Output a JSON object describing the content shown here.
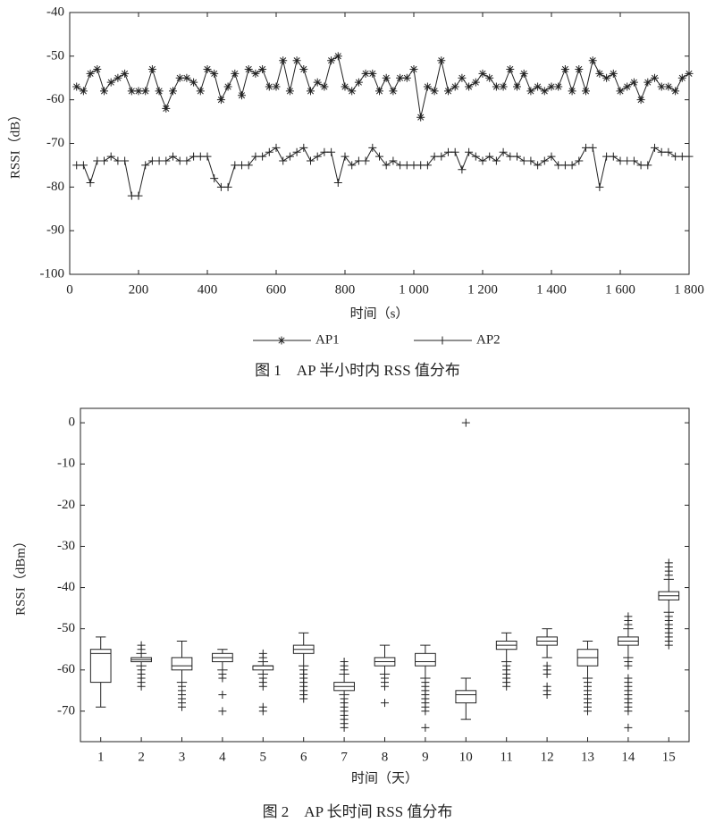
{
  "chart_data": [
    {
      "type": "line",
      "x_label": "时间（s）",
      "y_label": "RSSI（dB）",
      "caption": "图 1　AP 半小时内 RSS 值分布",
      "x": [
        20,
        40,
        60,
        80,
        100,
        120,
        140,
        160,
        180,
        200,
        220,
        240,
        260,
        280,
        300,
        320,
        340,
        360,
        380,
        400,
        420,
        440,
        460,
        480,
        500,
        520,
        540,
        560,
        580,
        600,
        620,
        640,
        660,
        680,
        700,
        720,
        740,
        760,
        780,
        800,
        820,
        840,
        860,
        880,
        900,
        920,
        940,
        960,
        980,
        1000,
        1020,
        1040,
        1060,
        1080,
        1100,
        1120,
        1140,
        1160,
        1180,
        1200,
        1220,
        1240,
        1260,
        1280,
        1300,
        1320,
        1340,
        1360,
        1380,
        1400,
        1420,
        1440,
        1460,
        1480,
        1500,
        1520,
        1540,
        1560,
        1580,
        1600,
        1620,
        1640,
        1660,
        1680,
        1700,
        1720,
        1740,
        1760,
        1780,
        1800
      ],
      "series": [
        {
          "name": "AP1",
          "color": "#222",
          "marker": "star",
          "values": [
            -57,
            -58,
            -54,
            -53,
            -58,
            -56,
            -55,
            -54,
            -58,
            -58,
            -58,
            -53,
            -58,
            -62,
            -58,
            -55,
            -55,
            -56,
            -58,
            -53,
            -54,
            -60,
            -57,
            -54,
            -59,
            -53,
            -54,
            -53,
            -57,
            -57,
            -51,
            -58,
            -51,
            -53,
            -58,
            -56,
            -57,
            -51,
            -50,
            -57,
            -58,
            -56,
            -54,
            -54,
            -58,
            -55,
            -58,
            -55,
            -55,
            -53,
            -64,
            -57,
            -58,
            -51,
            -58,
            -57,
            -55,
            -57,
            -56,
            -54,
            -55,
            -57,
            -57,
            -53,
            -57,
            -54,
            -58,
            -57,
            -58,
            -57,
            -57,
            -53,
            -58,
            -53,
            -58,
            -51,
            -54,
            -55,
            -54,
            -58,
            -57,
            -56,
            -60,
            -56,
            -55,
            -57,
            -57,
            -58,
            -55,
            -54
          ]
        },
        {
          "name": "AP2",
          "color": "#222",
          "marker": "plus",
          "values": [
            -75,
            -75,
            -79,
            -74,
            -74,
            -73,
            -74,
            -74,
            -82,
            -82,
            -75,
            -74,
            -74,
            -74,
            -73,
            -74,
            -74,
            -73,
            -73,
            -73,
            -78,
            -80,
            -80,
            -75,
            -75,
            -75,
            -73,
            -73,
            -72,
            -71,
            -74,
            -73,
            -72,
            -71,
            -74,
            -73,
            -72,
            -72,
            -79,
            -73,
            -75,
            -74,
            -74,
            -71,
            -73,
            -75,
            -74,
            -75,
            -75,
            -75,
            -75,
            -75,
            -73,
            -73,
            -72,
            -72,
            -76,
            -72,
            -73,
            -74,
            -73,
            -74,
            -72,
            -73,
            -73,
            -74,
            -74,
            -75,
            -74,
            -73,
            -75,
            -75,
            -75,
            -74,
            -71,
            -71,
            -80,
            -73,
            -73,
            -74,
            -74,
            -74,
            -75,
            -75,
            -71,
            -72,
            -72,
            -73,
            -73,
            -73
          ]
        }
      ],
      "xlim": [
        0,
        1800
      ],
      "xticks": [
        0,
        200,
        400,
        600,
        800,
        {
          "value": 1000,
          "label": "1 000"
        },
        {
          "value": 1200,
          "label": "1 200"
        },
        {
          "value": 1400,
          "label": "1 400"
        },
        {
          "value": 1600,
          "label": "1 600"
        },
        {
          "value": 1800,
          "label": "1 800"
        }
      ],
      "ylim": [
        -100,
        -40
      ],
      "yticks": [
        -100,
        -90,
        -80,
        -70,
        -60,
        -50,
        -40
      ]
    },
    {
      "type": "box",
      "x_label": "时间（天）",
      "y_label": "RSSI（dBm）",
      "caption": "图 2　AP 长时间 RSS 值分布",
      "color": "#222",
      "categories": [
        "1",
        "2",
        "3",
        "4",
        "5",
        "6",
        "7",
        "8",
        "9",
        "10",
        "11",
        "12",
        "13",
        "14",
        "15"
      ],
      "boxes": [
        {
          "whislo": -69,
          "q1": -63,
          "med": -56,
          "q3": -55,
          "whishi": -52,
          "fliers": []
        },
        {
          "whislo": -59,
          "q1": -58,
          "med": -57.5,
          "q3": -57,
          "whishi": -56,
          "fliers": [
            -54,
            -55,
            -60,
            -61,
            -62,
            -63,
            -64
          ]
        },
        {
          "whislo": -63,
          "q1": -60,
          "med": -59,
          "q3": -57,
          "whishi": -53,
          "fliers": [
            -64,
            -65,
            -66,
            -67,
            -68,
            -69
          ]
        },
        {
          "whislo": -60,
          "q1": -58,
          "med": -57,
          "q3": -56,
          "whishi": -55,
          "fliers": [
            -61,
            -62,
            -66,
            -70
          ]
        },
        {
          "whislo": -61,
          "q1": -60,
          "med": -59,
          "q3": -59,
          "whishi": -58,
          "fliers": [
            -56,
            -57,
            -62,
            -63,
            -64,
            -69,
            -70
          ]
        },
        {
          "whislo": -59,
          "q1": -56,
          "med": -55,
          "q3": -54,
          "whishi": -51,
          "fliers": [
            -60,
            -61,
            -62,
            -63,
            -64,
            -65,
            -66,
            -67
          ]
        },
        {
          "whislo": -66,
          "q1": -65,
          "med": -64,
          "q3": -63,
          "whishi": -61,
          "fliers": [
            -58,
            -59,
            -60,
            -67,
            -68,
            -69,
            -70,
            -71,
            -72,
            -73,
            -74
          ]
        },
        {
          "whislo": -61,
          "q1": -59,
          "med": -58,
          "q3": -57,
          "whishi": -54,
          "fliers": [
            -62,
            -63,
            -64,
            -68
          ]
        },
        {
          "whislo": -62,
          "q1": -59,
          "med": -58,
          "q3": -56,
          "whishi": -54,
          "fliers": [
            -63,
            -64,
            -65,
            -66,
            -67,
            -68,
            -69,
            -70,
            -74
          ]
        },
        {
          "whislo": -72,
          "q1": -68,
          "med": -66,
          "q3": -65,
          "whishi": -62,
          "fliers": [
            0
          ]
        },
        {
          "whislo": -58,
          "q1": -55,
          "med": -54,
          "q3": -53,
          "whishi": -51,
          "fliers": [
            -59,
            -60,
            -61,
            -62,
            -63,
            -64
          ]
        },
        {
          "whislo": -57,
          "q1": -54,
          "med": -53,
          "q3": -52,
          "whishi": -50,
          "fliers": [
            -59,
            -60,
            -61,
            -64,
            -65,
            -66
          ]
        },
        {
          "whislo": -62,
          "q1": -59,
          "med": -57,
          "q3": -55,
          "whishi": -53,
          "fliers": [
            -63,
            -64,
            -65,
            -66,
            -67,
            -68,
            -69,
            -70
          ]
        },
        {
          "whislo": -57,
          "q1": -54,
          "med": -53,
          "q3": -52,
          "whishi": -50,
          "fliers": [
            -47,
            -48,
            -49,
            -58,
            -59,
            -62,
            -63,
            -64,
            -65,
            -66,
            -67,
            -68,
            -69,
            -70,
            -74
          ]
        },
        {
          "whislo": -46,
          "q1": -43,
          "med": -42,
          "q3": -41,
          "whishi": -38,
          "fliers": [
            -34,
            -35,
            -36,
            -37,
            -47,
            -48,
            -49,
            -50,
            -51,
            -52,
            -53,
            -54
          ]
        }
      ],
      "ylim": [
        -77.4,
        3.5
      ],
      "yticks": [
        -70,
        -60,
        -50,
        -40,
        -30,
        -20,
        -10,
        0
      ]
    }
  ]
}
